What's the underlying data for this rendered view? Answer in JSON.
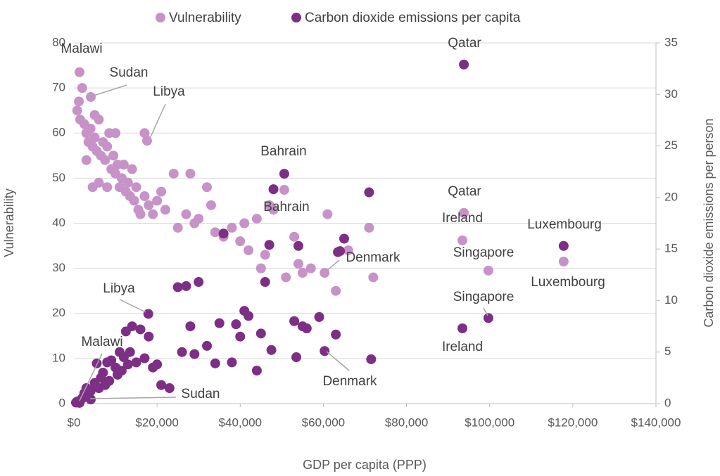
{
  "chart_data": {
    "type": "scatter",
    "xlabel": "GDP per capita (PPP)",
    "ylabel": "Vulnerability",
    "y2label": "Carbon dioxide emissions per person",
    "xlim": [
      0,
      140000
    ],
    "xticks": [
      {
        "value": 0,
        "label": "$0"
      },
      {
        "value": 20000,
        "label": "$20,000"
      },
      {
        "value": 40000,
        "label": "$40,000"
      },
      {
        "value": 60000,
        "label": "$60,000"
      },
      {
        "value": 80000,
        "label": "$80,000"
      },
      {
        "value": 100000,
        "label": "$100,000"
      },
      {
        "value": 120000,
        "label": "$120,000"
      },
      {
        "value": 140000,
        "label": "$140,000"
      }
    ],
    "ylim": [
      0,
      80
    ],
    "yticks": [
      0,
      10,
      20,
      30,
      40,
      50,
      60,
      70,
      80
    ],
    "y2lim": [
      0,
      35
    ],
    "y2ticks": [
      0,
      5,
      10,
      15,
      20,
      25,
      30,
      35
    ],
    "grid": true,
    "legend": "top",
    "series": [
      {
        "name": "Vulnerability",
        "color": "#c792c8",
        "x": [
          93800,
          93450,
          99700,
          117800,
          50600,
          60300,
          1350,
          4060,
          17600,
          800,
          1200,
          1500,
          2000,
          2500,
          3000,
          3500,
          4000,
          4500,
          5000,
          5500,
          6000,
          6500,
          7000,
          7500,
          8000,
          8500,
          9000,
          9500,
          10000,
          10500,
          11000,
          11500,
          12000,
          12500,
          13000,
          13500,
          14000,
          14500,
          15000,
          15500,
          16000,
          17000,
          18000,
          19000,
          20000,
          21000,
          22000,
          24000,
          25000,
          27000,
          28000,
          29000,
          30000,
          32000,
          33000,
          34000,
          36000,
          38000,
          40000,
          41000,
          42000,
          44000,
          45000,
          46000,
          47000,
          48000,
          51000,
          53000,
          54000,
          55000,
          57000,
          61000,
          63000,
          66000,
          71000,
          72000,
          4500,
          6000,
          8000,
          10000,
          3000,
          17000,
          5000
        ],
        "values": [
          42.3,
          36.2,
          29.5,
          31.5,
          47.4,
          29.0,
          73.5,
          68.0,
          58.3,
          65,
          67,
          63,
          70,
          62,
          60,
          58,
          61,
          57,
          59,
          56,
          63,
          55,
          58,
          54,
          57,
          60,
          52,
          55,
          51,
          53,
          48,
          50,
          53,
          47,
          49,
          46,
          52,
          45,
          48,
          43,
          42,
          46,
          44,
          42,
          45,
          47,
          43,
          51,
          39,
          42,
          51,
          40,
          41,
          48,
          44,
          38,
          37,
          39,
          36,
          40,
          34,
          41,
          30,
          33,
          44,
          43,
          28,
          37,
          31,
          29,
          30,
          42,
          25,
          34,
          39,
          28,
          48,
          49,
          48,
          60,
          54,
          60,
          64
        ]
      },
      {
        "name": "Carbon dioxide emissions per capita",
        "color": "#7d2e85",
        "axis": "y2",
        "x": [
          93800,
          93450,
          99700,
          117800,
          50600,
          60300,
          1350,
          4060,
          17900,
          500,
          800,
          1500,
          2000,
          2500,
          3000,
          3500,
          4000,
          5000,
          5500,
          6000,
          6500,
          7000,
          7500,
          8000,
          8500,
          9000,
          10000,
          10500,
          11000,
          11500,
          12000,
          12500,
          13000,
          13500,
          14000,
          15000,
          16000,
          17000,
          18000,
          19000,
          20000,
          21000,
          23000,
          25000,
          26000,
          27000,
          28000,
          29000,
          30000,
          32000,
          34000,
          35000,
          36000,
          38000,
          39000,
          40000,
          41000,
          42000,
          44000,
          45000,
          46000,
          47000,
          48000,
          47500,
          53000,
          53500,
          54000,
          55000,
          56000,
          59000,
          63000,
          64000,
          65000,
          71000,
          71500,
          63500
        ],
        "values": [
          32.9,
          7.3,
          8.3,
          15.3,
          22.3,
          5.1,
          0.07,
          0.4,
          8.7,
          0.1,
          0.2,
          0.3,
          0.5,
          1,
          1.5,
          0.8,
          1.2,
          2,
          3.9,
          1.5,
          2.5,
          3,
          1.8,
          4,
          2.2,
          4.2,
          3.5,
          2.8,
          5,
          3.2,
          4.5,
          7,
          3.8,
          5,
          7.5,
          4,
          7.2,
          4.4,
          6.5,
          3.5,
          3.8,
          1.8,
          1.5,
          11.3,
          5,
          11.4,
          7.5,
          4.8,
          11.8,
          5.6,
          3.9,
          7.8,
          16.5,
          4,
          7.7,
          6.5,
          9,
          8.5,
          3.2,
          6.8,
          11.8,
          15.4,
          20.8,
          5.2,
          8,
          4.5,
          15.3,
          7.5,
          7.3,
          8.4,
          6.7,
          14.8,
          16,
          20.5,
          4.3,
          14.7
        ]
      }
    ],
    "annotations": [
      "Malawi",
      "Sudan",
      "Libya",
      "Qatar",
      "Bahrain",
      "Bahrain",
      "Qatar",
      "Ireland",
      "Luxembourg",
      "Singapore",
      "Denmark",
      "Luxembourg",
      "Libya",
      "Singapore",
      "Malawi",
      "Ireland",
      "Denmark",
      "Sudan"
    ]
  }
}
